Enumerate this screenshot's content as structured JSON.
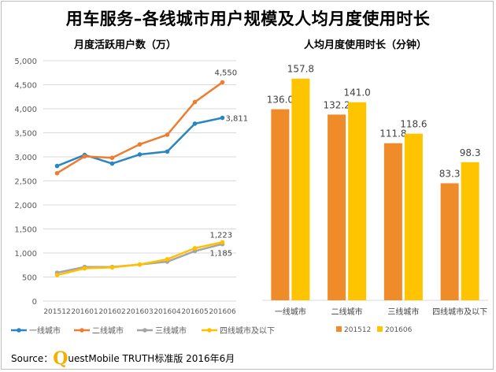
{
  "title": "用车服务–各线城市用户规模及人均月度使用时长",
  "source": {
    "label": "Source：",
    "q_letter": "Q",
    "brand_rest": "uestMobile TRUTH标准版 2016年6月"
  },
  "colors": {
    "blue": "#2a86c1",
    "orange": "#ed7d31",
    "gray": "#a5a5a5",
    "yellow": "#ffc000",
    "bar_orange": "#f08b2a",
    "bar_yellow": "#ffc400",
    "grid": "#d9d9d9",
    "axis_text": "#595959"
  },
  "chart_data": [
    {
      "type": "line",
      "title": "月度活跃用户数（万）",
      "categories": [
        "201512",
        "201601",
        "201602",
        "201603",
        "201604",
        "201605",
        "201606"
      ],
      "ylim": [
        0,
        5000
      ],
      "yticks": [
        0,
        500,
        1000,
        1500,
        2000,
        2500,
        3000,
        3500,
        4000,
        4500,
        5000
      ],
      "ytick_labels": [
        "0",
        "500",
        "1,000",
        "1,500",
        "2,000",
        "2,500",
        "3,000",
        "3,500",
        "4,000",
        "4,500",
        "5,000"
      ],
      "grid": true,
      "legend_position": "bottom",
      "series": [
        {
          "name": "一线城市",
          "color_key": "blue",
          "values": [
            2810,
            3040,
            2860,
            3050,
            3110,
            3690,
            3811
          ],
          "end_label": "3,811"
        },
        {
          "name": "二线城市",
          "color_key": "orange",
          "values": [
            2660,
            3010,
            2980,
            3260,
            3460,
            4140,
            4550
          ],
          "end_label": "4,550"
        },
        {
          "name": "三线城市",
          "color_key": "gray",
          "values": [
            590,
            710,
            710,
            760,
            820,
            1040,
            1185
          ],
          "end_label": "1,185"
        },
        {
          "name": "四线城市及以下",
          "color_key": "yellow",
          "values": [
            540,
            680,
            700,
            760,
            870,
            1100,
            1223
          ],
          "end_label": "1,223"
        }
      ]
    },
    {
      "type": "bar",
      "title": "人均月度使用时长（分钟）",
      "categories": [
        "一线城市",
        "二线城市",
        "三线城市",
        "四线城市及以下"
      ],
      "ylim": [
        0,
        170
      ],
      "grid": false,
      "legend_position": "bottom",
      "series": [
        {
          "name": "201512",
          "color_key": "bar_orange",
          "values": [
            136.0,
            132.2,
            111.8,
            83.3
          ],
          "labels": [
            "136.0",
            "132.2",
            "111.8",
            "83.3"
          ]
        },
        {
          "name": "201606",
          "color_key": "bar_yellow",
          "values": [
            157.8,
            141.0,
            118.6,
            98.3
          ],
          "labels": [
            "157.8",
            "141.0",
            "118.6",
            "98.3"
          ]
        }
      ]
    }
  ]
}
